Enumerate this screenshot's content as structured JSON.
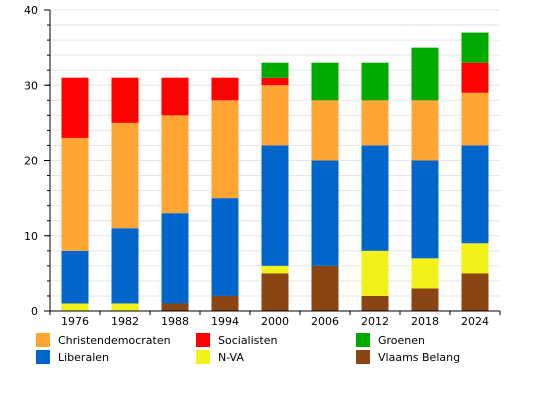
{
  "chart_data": {
    "type": "bar",
    "stacked": true,
    "categories": [
      "1976",
      "1982",
      "1988",
      "1994",
      "2000",
      "2006",
      "2012",
      "2018",
      "2024"
    ],
    "ylim": [
      0,
      40
    ],
    "yticks": [
      0,
      10,
      20,
      30,
      40
    ],
    "grid": true,
    "legend_position": "bottom",
    "series": [
      {
        "name": "Vlaams Belang",
        "color": "#8B4513",
        "values": [
          0,
          0,
          1,
          2,
          5,
          6,
          2,
          3,
          5
        ]
      },
      {
        "name": "N-VA",
        "color": "#F2F21A",
        "values": [
          1,
          1,
          0,
          0,
          1,
          0,
          6,
          4,
          4
        ]
      },
      {
        "name": "Liberalen",
        "color": "#0066CC",
        "values": [
          7,
          10,
          12,
          13,
          16,
          14,
          14,
          13,
          13
        ]
      },
      {
        "name": "Christendemocraten",
        "color": "#FFA533",
        "values": [
          15,
          14,
          13,
          13,
          8,
          8,
          6,
          8,
          7
        ]
      },
      {
        "name": "Socialisten",
        "color": "#FF0000",
        "values": [
          8,
          6,
          5,
          3,
          1,
          0,
          0,
          0,
          4
        ]
      },
      {
        "name": "Groenen",
        "color": "#00AA00",
        "values": [
          0,
          0,
          0,
          0,
          2,
          5,
          5,
          7,
          4
        ]
      }
    ],
    "legend_order": [
      "Christendemocraten",
      "Socialisten",
      "Groenen",
      "Liberalen",
      "N-VA",
      "Vlaams Belang"
    ]
  }
}
